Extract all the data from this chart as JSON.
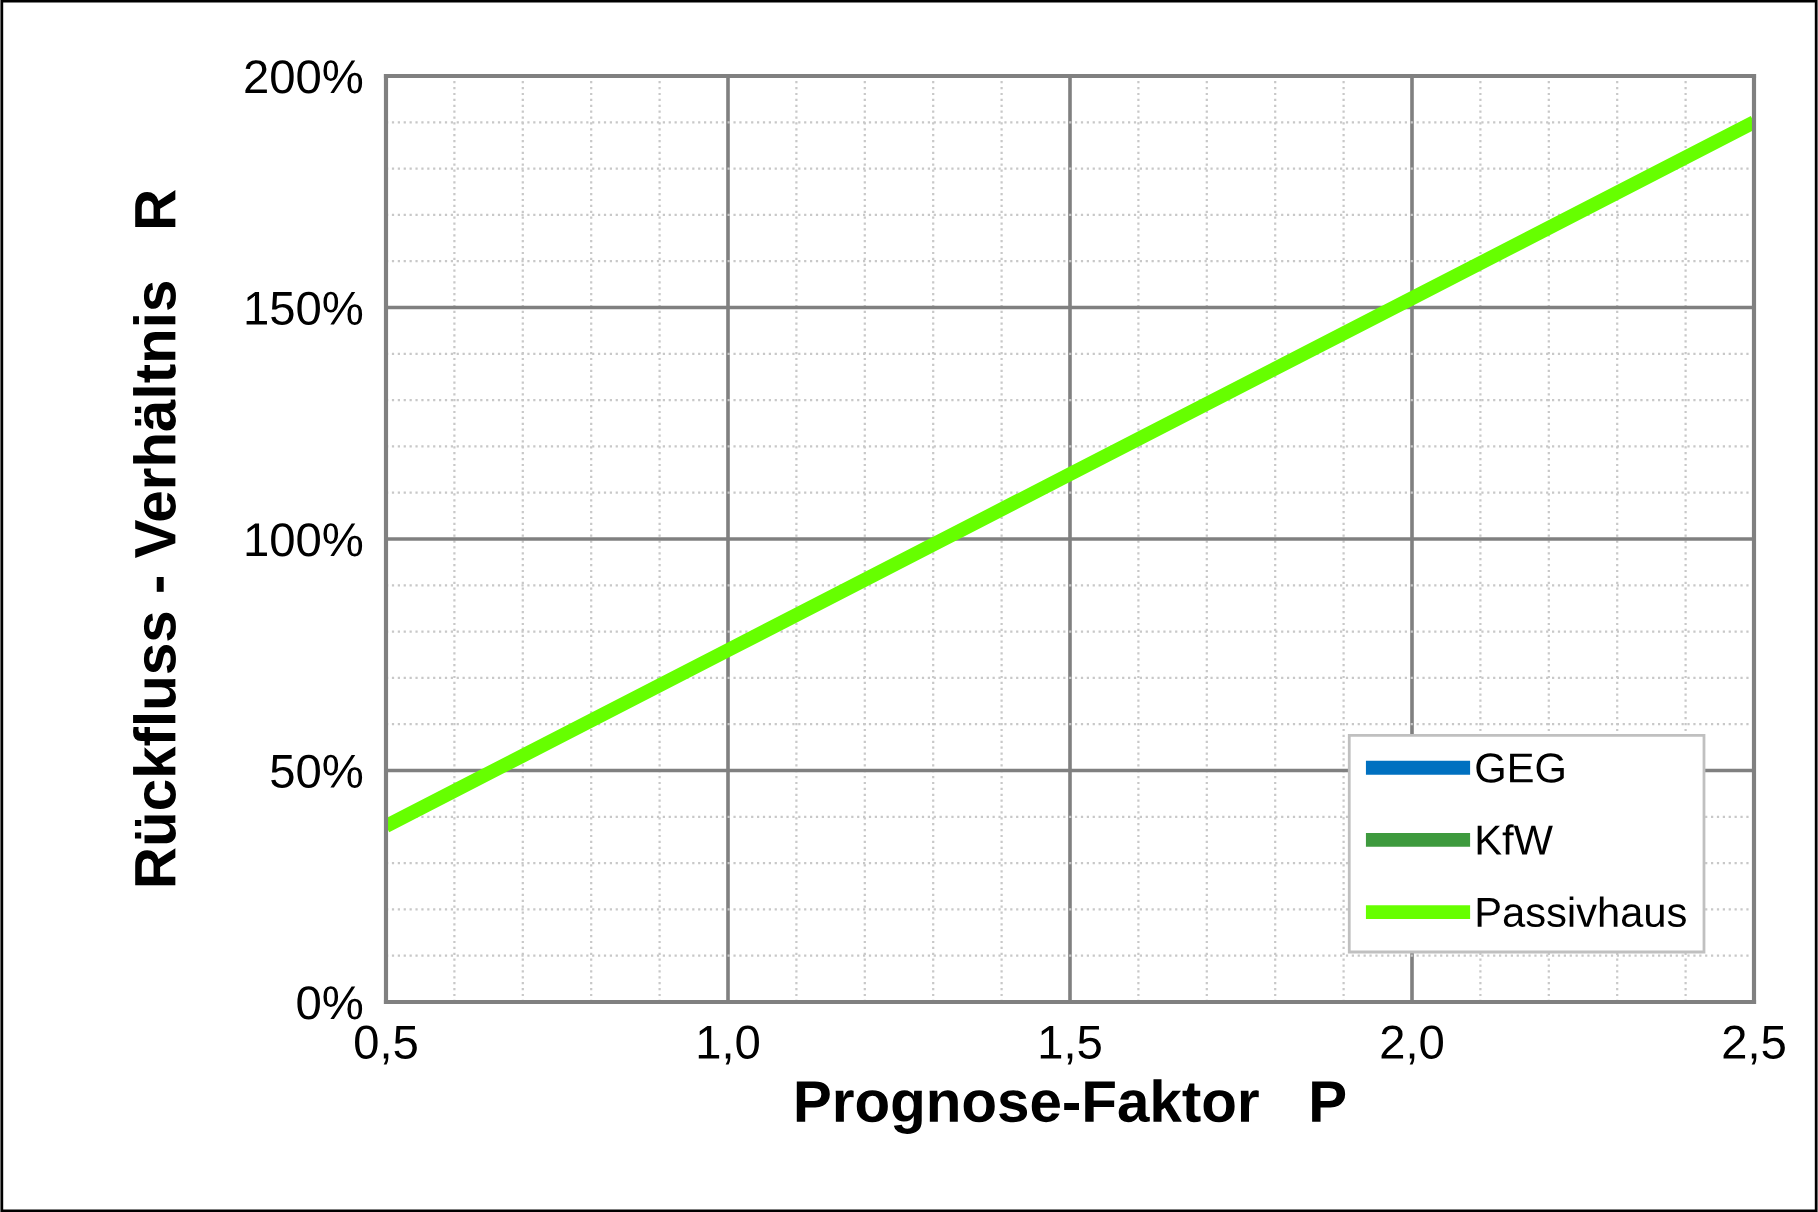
{
  "chart_data": {
    "type": "line",
    "xlabel": "Prognose-Faktor   P",
    "ylabel": "Rückfluss - Verhältnis   R",
    "x": [
      0.5,
      1.0,
      1.5,
      2.0,
      2.5
    ],
    "series": [
      {
        "name": "GEG",
        "color": "#0070c0",
        "values": [
          null,
          null,
          null,
          null,
          null
        ]
      },
      {
        "name": "KfW",
        "color": "#3e9a3e",
        "values": [
          null,
          null,
          null,
          null,
          null
        ]
      },
      {
        "name": "Passivhaus",
        "color": "#66ff00",
        "values": [
          38,
          76,
          114,
          152,
          190
        ]
      }
    ],
    "xlim": [
      0.5,
      2.5
    ],
    "xticks": [
      {
        "value": 0.5,
        "label": "0,5"
      },
      {
        "value": 1.0,
        "label": "1,0"
      },
      {
        "value": 1.5,
        "label": "1,5"
      },
      {
        "value": 2.0,
        "label": "2,0"
      },
      {
        "value": 2.5,
        "label": "2,5"
      }
    ],
    "ylim": [
      0,
      200
    ],
    "yticks": [
      {
        "value": 0,
        "label": "0%"
      },
      {
        "value": 50,
        "label": "50%"
      },
      {
        "value": 100,
        "label": "100%"
      },
      {
        "value": 150,
        "label": "150%"
      },
      {
        "value": 200,
        "label": "200%"
      }
    ],
    "grid": true,
    "legend": "bottom right",
    "marker": "none",
    "line_style": "solid"
  }
}
